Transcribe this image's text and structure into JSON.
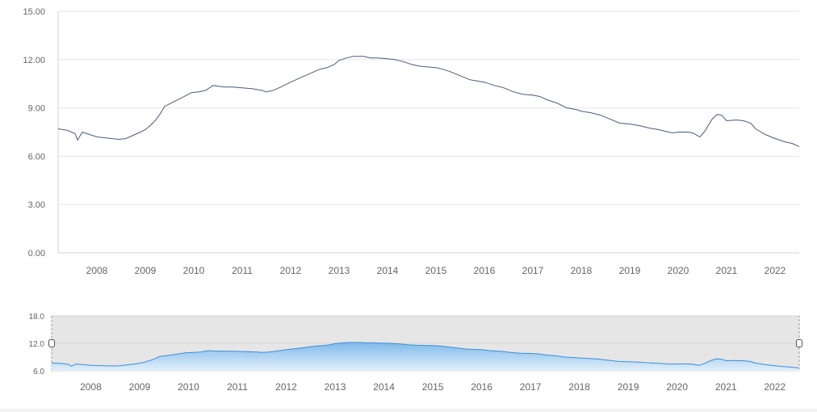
{
  "chart_data": {
    "type": "line",
    "title": "",
    "xlabel": "",
    "ylabel": "",
    "ylim": [
      0,
      15
    ],
    "yticks": [
      "0.00",
      "3.00",
      "6.00",
      "9.00",
      "12.00",
      "15.00"
    ],
    "xticks": [
      "2008",
      "2009",
      "2010",
      "2011",
      "2012",
      "2013",
      "2014",
      "2015",
      "2016",
      "2017",
      "2018",
      "2019",
      "2020",
      "2021",
      "2022"
    ],
    "xlim": [
      2007.2,
      2022.5
    ],
    "grid": true,
    "line_color": "#4a5b7a",
    "series": [
      {
        "name": "",
        "x": [
          2007.2,
          2007.4,
          2007.55,
          2007.6,
          2007.7,
          2007.8,
          2007.9,
          2008.0,
          2008.15,
          2008.3,
          2008.45,
          2008.6,
          2008.75,
          2008.9,
          2009.0,
          2009.1,
          2009.2,
          2009.3,
          2009.4,
          2009.6,
          2009.8,
          2009.95,
          2010.1,
          2010.25,
          2010.4,
          2010.5,
          2010.65,
          2010.8,
          2011.0,
          2011.2,
          2011.4,
          2011.5,
          2011.65,
          2011.8,
          2012.0,
          2012.15,
          2012.3,
          2012.45,
          2012.6,
          2012.75,
          2012.9,
          2013.0,
          2013.15,
          2013.3,
          2013.5,
          2013.65,
          2013.8,
          2014.0,
          2014.15,
          2014.3,
          2014.5,
          2014.65,
          2014.8,
          2015.0,
          2015.15,
          2015.3,
          2015.5,
          2015.7,
          2015.9,
          2016.0,
          2016.2,
          2016.4,
          2016.6,
          2016.8,
          2017.0,
          2017.15,
          2017.3,
          2017.5,
          2017.7,
          2017.9,
          2018.0,
          2018.2,
          2018.4,
          2018.6,
          2018.8,
          2019.0,
          2019.2,
          2019.4,
          2019.6,
          2019.8,
          2019.9,
          2020.0,
          2020.2,
          2020.3,
          2020.45,
          2020.55,
          2020.7,
          2020.8,
          2020.9,
          2021.0,
          2021.2,
          2021.35,
          2021.5,
          2021.6,
          2021.8,
          2022.0,
          2022.2,
          2022.35,
          2022.5
        ],
        "values": [
          7.7,
          7.6,
          7.4,
          7.0,
          7.5,
          7.4,
          7.3,
          7.2,
          7.15,
          7.1,
          7.05,
          7.1,
          7.3,
          7.5,
          7.65,
          7.9,
          8.2,
          8.6,
          9.1,
          9.4,
          9.7,
          9.95,
          10.0,
          10.1,
          10.4,
          10.35,
          10.3,
          10.3,
          10.25,
          10.2,
          10.1,
          10.0,
          10.1,
          10.3,
          10.6,
          10.8,
          11.0,
          11.2,
          11.4,
          11.5,
          11.7,
          11.95,
          12.1,
          12.2,
          12.2,
          12.1,
          12.1,
          12.05,
          12.0,
          11.9,
          11.7,
          11.6,
          11.55,
          11.5,
          11.4,
          11.25,
          11.0,
          10.75,
          10.65,
          10.6,
          10.4,
          10.25,
          10.0,
          9.85,
          9.8,
          9.7,
          9.5,
          9.3,
          9.0,
          8.9,
          8.8,
          8.7,
          8.55,
          8.3,
          8.05,
          8.0,
          7.9,
          7.75,
          7.65,
          7.5,
          7.45,
          7.5,
          7.5,
          7.45,
          7.2,
          7.55,
          8.3,
          8.6,
          8.55,
          8.2,
          8.25,
          8.2,
          8.05,
          7.7,
          7.35,
          7.1,
          6.9,
          6.8,
          6.6
        ]
      }
    ],
    "navigator": {
      "ylim": [
        6,
        18
      ],
      "yticks": [
        "6.0",
        "12.0",
        "18.0"
      ],
      "xticks": [
        "2008",
        "2009",
        "2010",
        "2011",
        "2012",
        "2013",
        "2014",
        "2015",
        "2016",
        "2017",
        "2018",
        "2019",
        "2020",
        "2021",
        "2022"
      ],
      "line_color": "#3c8fd9",
      "fill_top": "#7fb9ea",
      "fill_bottom": "#e3f0fb"
    }
  }
}
